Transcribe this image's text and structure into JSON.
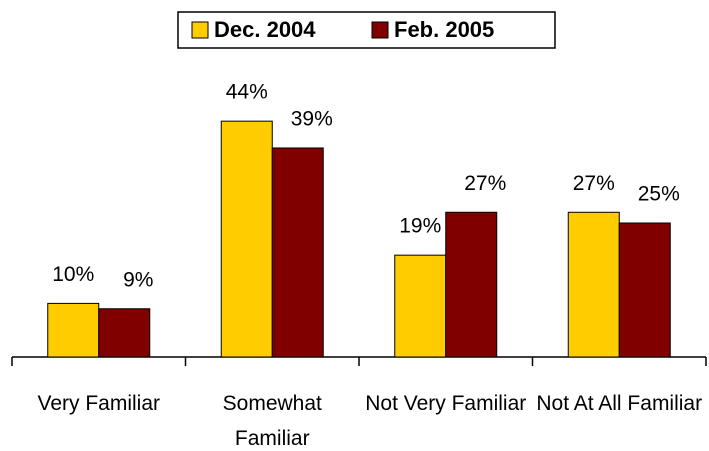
{
  "chart_data": {
    "type": "bar",
    "categories": [
      "Very Familiar",
      "Somewhat Familiar",
      "Not Very Familiar",
      "Not At All Familiar"
    ],
    "series": [
      {
        "name": "Dec. 2004",
        "color": "#ffcc00",
        "values": [
          10,
          44,
          19,
          27
        ],
        "value_labels": [
          "10%",
          "44%",
          "19%",
          "27%"
        ]
      },
      {
        "name": "Feb. 2005",
        "color": "#800000",
        "values": [
          9,
          39,
          27,
          25
        ],
        "value_labels": [
          "9%",
          "39%",
          "27%",
          "25%"
        ]
      }
    ],
    "ylim": [
      0,
      50
    ],
    "legend": "top"
  }
}
